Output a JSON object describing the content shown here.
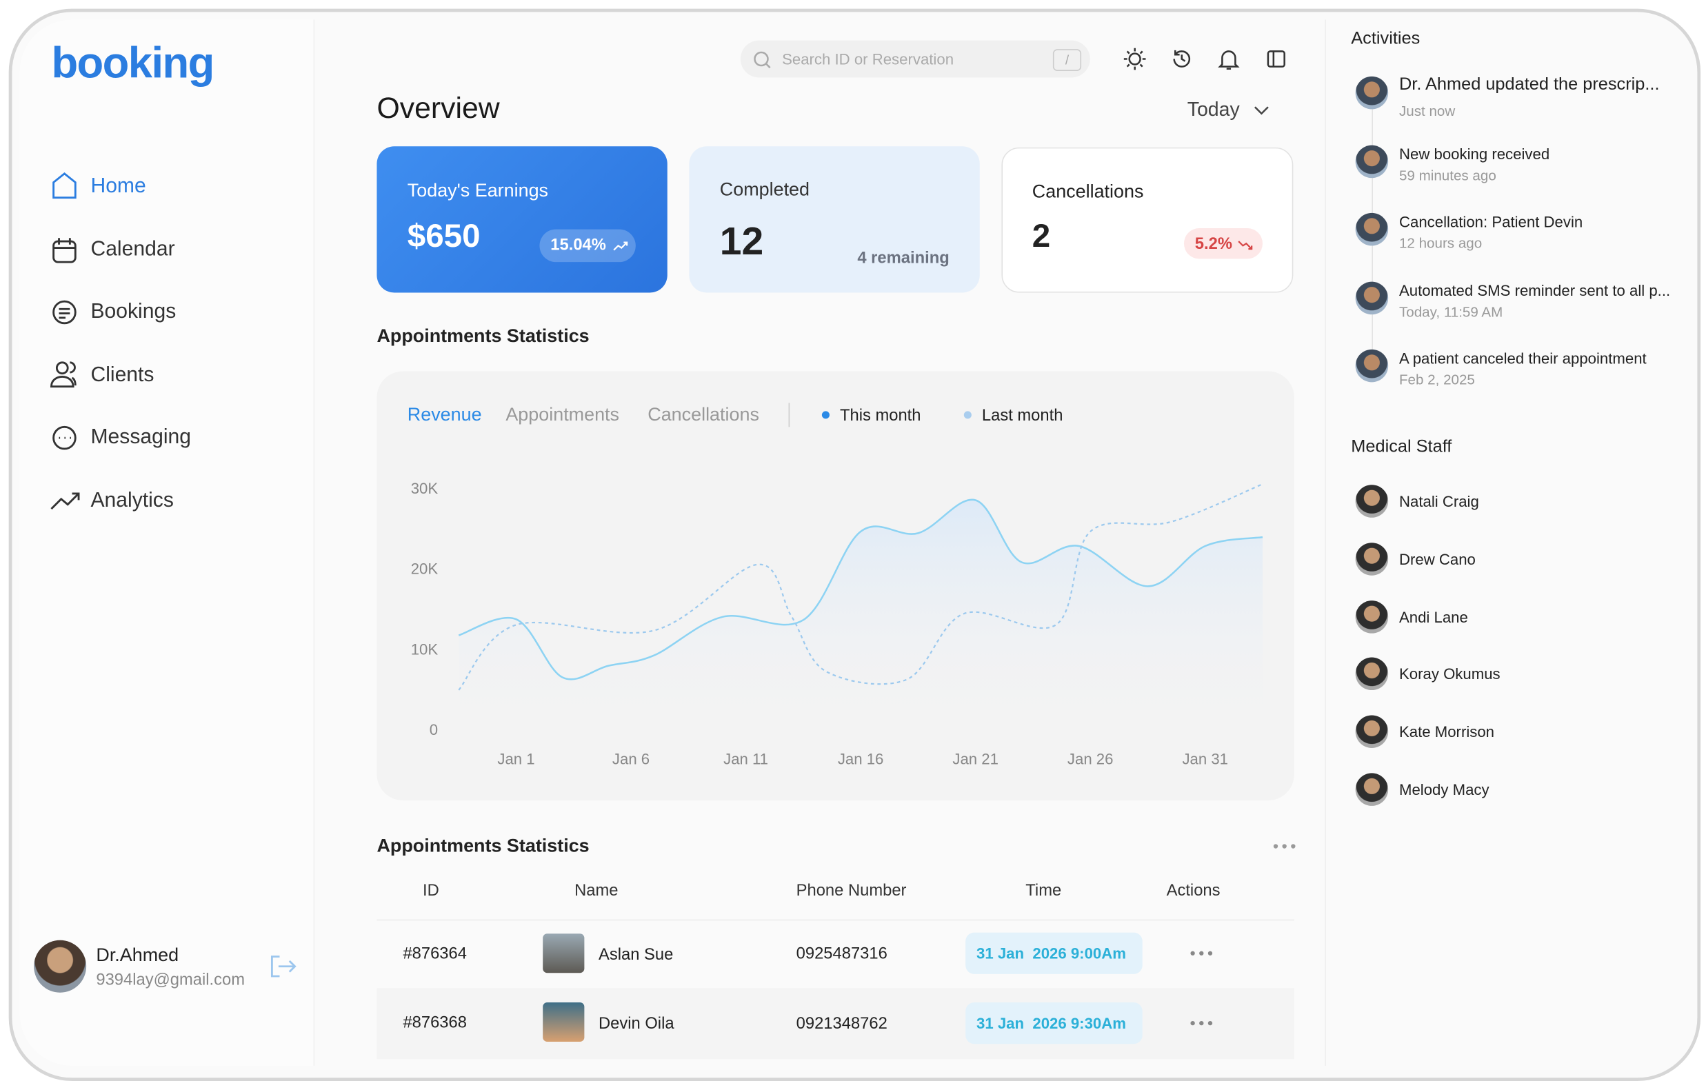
{
  "logo": "booking",
  "nav": [
    "Home",
    "Calendar",
    "Bookings",
    "Clients",
    "Messaging",
    "Analytics"
  ],
  "user": {
    "name": "Dr.Ahmed",
    "email": "9394lay@gmail.com"
  },
  "search": {
    "placeholder": "Search ID or Reservation",
    "shortcut": "/"
  },
  "overview": {
    "title": "Overview",
    "period": "Today"
  },
  "cards": [
    {
      "title": "Today's Earnings",
      "value": "$650",
      "badge": "15.04%"
    },
    {
      "title": "Completed",
      "value": "12",
      "note": "4 remaining"
    },
    {
      "title": "Cancellations",
      "value": "2",
      "badge": "5.2%"
    }
  ],
  "stats": {
    "title": "Appointments Statistics",
    "tabs": [
      "Revenue",
      "Appointments",
      "Cancellations"
    ]
  },
  "chart": {
    "type": "line",
    "xlim": [
      -1.5,
      33.5
    ],
    "ylim": [
      0,
      30000
    ],
    "xticks": [
      {
        "value": 1,
        "label": "Jan 1"
      },
      {
        "value": 6,
        "label": "Jan 6"
      },
      {
        "value": 11,
        "label": "Jan 11"
      },
      {
        "value": 16,
        "label": "Jan 16"
      },
      {
        "value": 21,
        "label": "Jan 21"
      },
      {
        "value": 26,
        "label": "Jan 26"
      },
      {
        "value": 31,
        "label": "Jan 31"
      }
    ],
    "yticks": [
      0,
      {
        "value": 10000,
        "label": "10K"
      },
      {
        "value": 20000,
        "label": "20K"
      },
      {
        "value": 30000,
        "label": "30K"
      }
    ],
    "grid": false,
    "series": [
      {
        "name": "This month",
        "color": "#8dd3f3",
        "x": [
          -1.5,
          1,
          3,
          5,
          7,
          10,
          13.5,
          16,
          18.5,
          21,
          23,
          25.5,
          28.5,
          31,
          33.5
        ],
        "values": [
          11700,
          13700,
          6500,
          7900,
          9200,
          14000,
          13600,
          24600,
          24400,
          28500,
          20800,
          22800,
          17800,
          22800,
          23900
        ]
      },
      {
        "name": "Last month",
        "color": "#9cc9ee",
        "x": [
          -1.5,
          1,
          7,
          11.5,
          13,
          14.5,
          18,
          20.5,
          24.5,
          26,
          29.5,
          33.5
        ],
        "values": [
          4900,
          13000,
          12300,
          20500,
          14000,
          7200,
          6200,
          14400,
          13000,
          24600,
          25800,
          30500
        ]
      }
    ]
  },
  "table": {
    "title": "Appointments Statistics",
    "columns": [
      "ID",
      "Name",
      "Phone Number",
      "Time",
      "Actions"
    ],
    "rows": [
      [
        "#876364",
        "Aslan Sue",
        "0925487316",
        "31 Jan  2026 9:00Am"
      ],
      [
        "#876368",
        "Devin Oila",
        "0921348762",
        "31 Jan  2026 9:30Am"
      ]
    ]
  },
  "activities": {
    "title": "Activities",
    "items": [
      {
        "text": "Dr. Ahmed updated the prescrip...",
        "time": "Just now"
      },
      {
        "text": "New booking received",
        "time": "59 minutes ago"
      },
      {
        "text": "Cancellation: Patient Devin",
        "time": "12 hours ago"
      },
      {
        "text": "Automated SMS reminder sent to all p...",
        "time": "Today, 11:59 AM"
      },
      {
        "text": "A patient canceled their appointment",
        "time": "Feb 2, 2025"
      }
    ]
  },
  "staff": {
    "title": "Medical Staff",
    "names": [
      "Natali Craig",
      "Drew Cano",
      "Andi Lane",
      "Koray Okumus",
      "Kate Morrison",
      "Melody Macy"
    ]
  }
}
